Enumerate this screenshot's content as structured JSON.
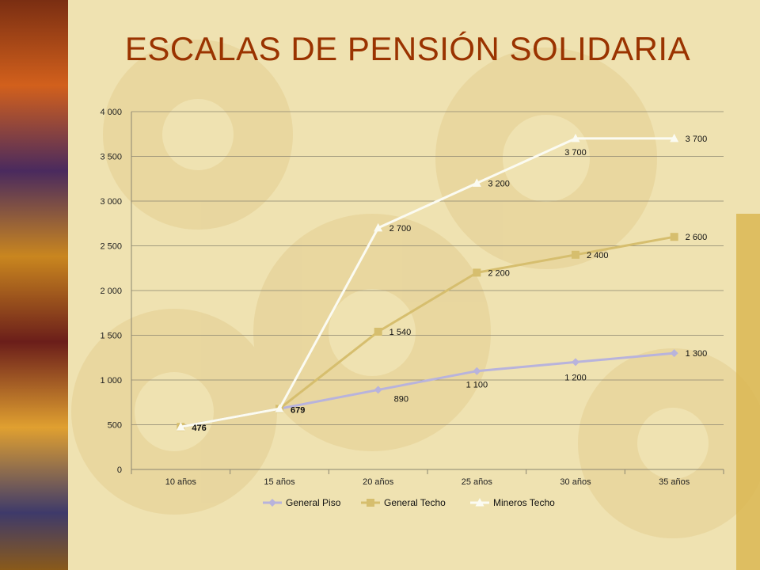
{
  "slide": {
    "title": "ESCALAS DE PENSIÓN SOLIDARIA"
  },
  "colors": {
    "background": "#efe2b1",
    "gear": "#e6d49a",
    "title": "#9a3300",
    "general_piso": "#b8b3dc",
    "general_techo": "#d6be6e",
    "mineros_techo": "#fbfbf2"
  },
  "chart_data": {
    "type": "line",
    "title": "",
    "xlabel": "",
    "ylabel": "",
    "categories": [
      "10 años",
      "15 años",
      "20 años",
      "25 años",
      "30 años",
      "35 años"
    ],
    "ylim": [
      0,
      4000
    ],
    "yticks": [
      0,
      500,
      1000,
      1500,
      2000,
      2500,
      3000,
      3500,
      4000
    ],
    "ytick_labels": [
      "0",
      "500",
      "1 000",
      "1 500",
      "2 000",
      "2 500",
      "3 000",
      "3 500",
      "4 000"
    ],
    "grid": true,
    "legend_position": "bottom",
    "series": [
      {
        "name": "General Piso",
        "marker": "diamond",
        "values": [
          476,
          679,
          890,
          1100,
          1200,
          1300
        ],
        "labels": [
          "",
          "",
          "890",
          "1 100",
          "1 200",
          "1 300"
        ]
      },
      {
        "name": "General Techo",
        "marker": "square",
        "values": [
          476,
          679,
          1540,
          2200,
          2400,
          2600
        ],
        "labels": [
          "",
          "",
          "1 540",
          "2 200",
          "2 400",
          "2 600"
        ]
      },
      {
        "name": "Mineros Techo",
        "marker": "triangle",
        "values": [
          476,
          679,
          2700,
          3200,
          3700,
          3700
        ],
        "labels": [
          "476",
          "679",
          "2 700",
          "3 200",
          "3 700",
          "3 700"
        ]
      }
    ]
  }
}
